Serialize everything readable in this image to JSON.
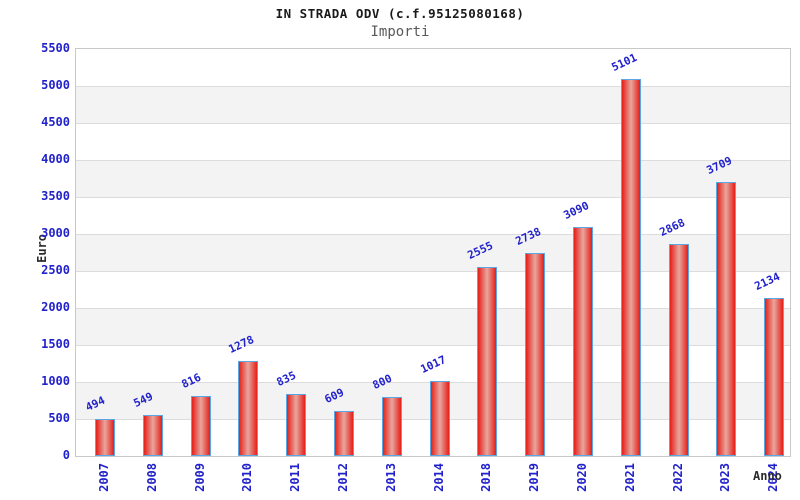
{
  "chart_data": {
    "type": "bar",
    "title": "IN STRADA ODV (c.f.95125080168)",
    "subtitle": "Importi",
    "xlabel": "Anno",
    "ylabel": "Euro",
    "categories": [
      "2007",
      "2008",
      "2009",
      "2010",
      "2011",
      "2012",
      "2013",
      "2014",
      "2018",
      "2019",
      "2020",
      "2021",
      "2022",
      "2023",
      "2024"
    ],
    "values": [
      494,
      549,
      816,
      1278,
      835,
      609,
      800,
      1017,
      2555,
      2738,
      3090,
      5101,
      2868,
      3709,
      2134
    ],
    "ylim": [
      0,
      5500
    ],
    "ytick_step": 500,
    "grid": "horizontal-bands-alternating",
    "legend": false,
    "colors": {
      "bar_fill_edge": "#e42018",
      "bar_fill_center": "#e9a69e",
      "bar_border": "#5aa7e8",
      "tick_label": "#2222cc",
      "value_label": "#2222cc",
      "axis_label": "#2b2b2b",
      "title": "#1a1a1a",
      "subtitle": "#595959",
      "band": "#f3f3f3",
      "gridline": "#dcdcdc",
      "plot_border": "#c9c9c9",
      "background": "#ffffff"
    }
  }
}
